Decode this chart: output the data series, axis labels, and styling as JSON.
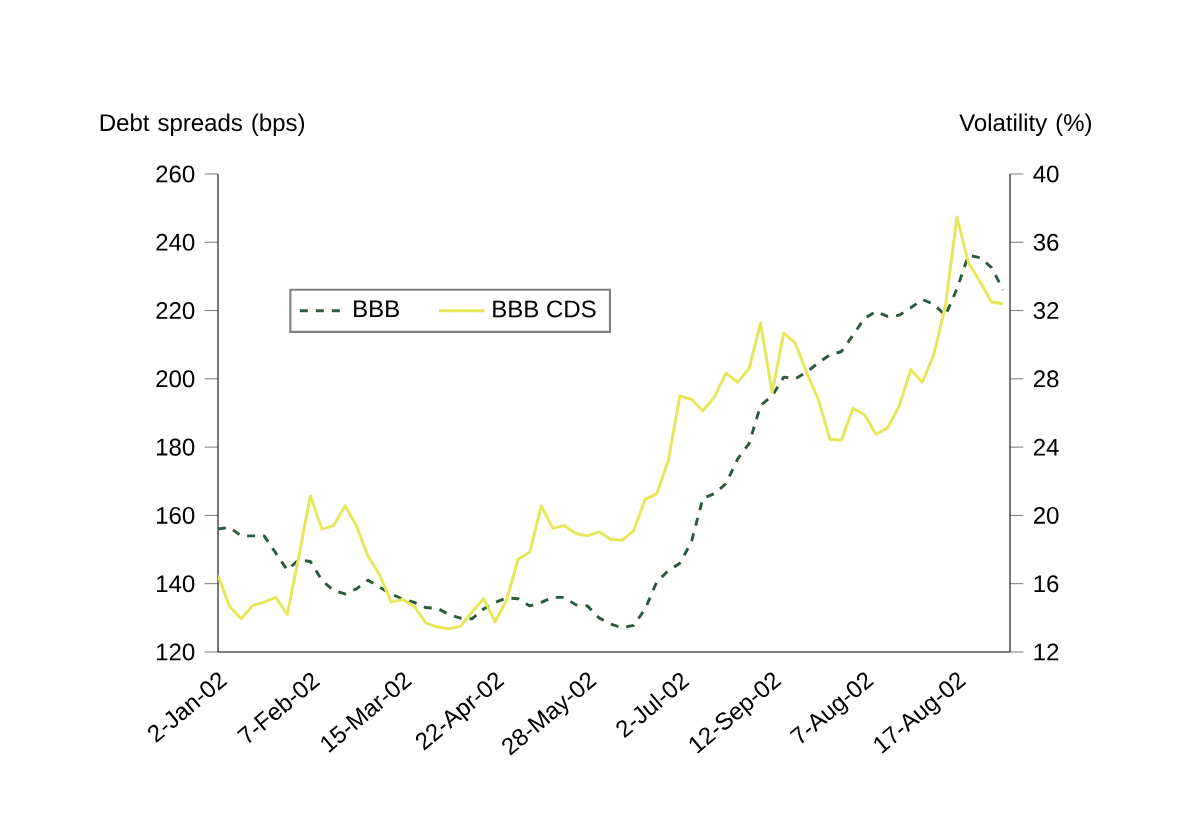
{
  "chart_data": {
    "type": "line",
    "ylabel": "Debt spreads (bps)",
    "y2label": "Volatility (%)",
    "categories": [
      "2-Jan-02",
      null,
      null,
      null,
      null,
      null,
      null,
      null,
      "7-Feb-02",
      null,
      null,
      null,
      null,
      null,
      null,
      null,
      "15-Mar-02",
      null,
      null,
      null,
      null,
      null,
      null,
      null,
      "22-Apr-02",
      null,
      null,
      null,
      null,
      null,
      null,
      null,
      "28-May-02",
      null,
      null,
      null,
      null,
      null,
      null,
      null,
      "2-Jul-02",
      null,
      null,
      null,
      null,
      null,
      null,
      null,
      "12-Sep-02",
      null,
      null,
      null,
      null,
      null,
      null,
      null,
      "7-Aug-02",
      null,
      null,
      null,
      null,
      null,
      null,
      null,
      "17-Aug-02",
      null,
      null,
      null,
      null
    ],
    "ylim": [
      120,
      260
    ],
    "yticks": [
      120,
      140,
      160,
      180,
      200,
      220,
      240,
      260
    ],
    "y2lim": [
      12,
      40
    ],
    "y2ticks": [
      12,
      16,
      20,
      24,
      28,
      32,
      36,
      40
    ],
    "legend": "top left",
    "series": [
      {
        "name": "BBB",
        "color": "#2d5a3d",
        "line_style": "dashed",
        "values": [
          156,
          156.5,
          154,
          154,
          154,
          149,
          144,
          147,
          146.5,
          141,
          138,
          137,
          138.5,
          141,
          139,
          137,
          135.5,
          134.5,
          133,
          132.8,
          131,
          129.9,
          129.7,
          132.6,
          134.5,
          135.8,
          135.6,
          133.5,
          134.5,
          136,
          136,
          133.8,
          133.5,
          130,
          128.2,
          127.1,
          127.8,
          132.6,
          140.5,
          143.8,
          146,
          152.2,
          165,
          166.4,
          169.3,
          176.5,
          181,
          192.2,
          195,
          200.5,
          200,
          202,
          204.7,
          207,
          208,
          212.8,
          217.7,
          219.7,
          218.3,
          218.6,
          220.8,
          223.2,
          221.9,
          218.5,
          226.3,
          236.2,
          235.5,
          232.6,
          226.1
        ]
      },
      {
        "name": "BBB CDS",
        "color": "#e6e65a",
        "line_style": "solid",
        "values": [
          142.4,
          133.4,
          129.7,
          133.6,
          134.6,
          136,
          131,
          148,
          165.7,
          156,
          157,
          162.8,
          157,
          148,
          142.6,
          134.6,
          135.4,
          133.4,
          128.5,
          127.3,
          126.8,
          127.5,
          131.7,
          135.6,
          128.8,
          135.3,
          147.2,
          149.2,
          162.8,
          156.2,
          157,
          154.7,
          154,
          155.2,
          153,
          152.7,
          155.5,
          164.7,
          166.3,
          176,
          195,
          194,
          190.6,
          194.7,
          201.7,
          199,
          203,
          216.3,
          196,
          213.4,
          210.5,
          201.7,
          194,
          182.3,
          182,
          191.4,
          189.5,
          183.8,
          185.6,
          192,
          202.7,
          199,
          207,
          221.2,
          247.4,
          234,
          228.5,
          222.5,
          222
        ]
      }
    ]
  }
}
